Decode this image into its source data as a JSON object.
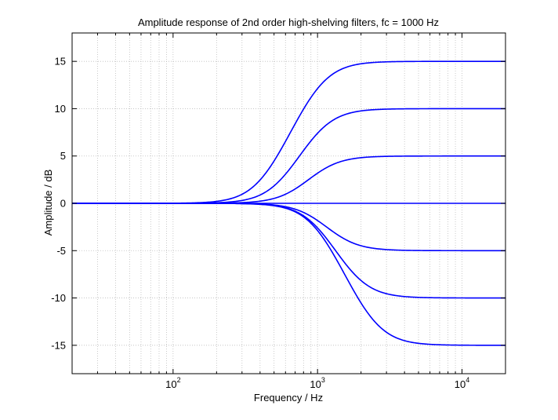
{
  "chart_data": {
    "type": "line",
    "title": "Amplitude response of 2nd order high-shelving filters, fc = 1000 Hz",
    "xlabel": "Frequency / Hz",
    "ylabel": "Amplitude / dB",
    "xscale": "log",
    "xlim": [
      20,
      20000
    ],
    "ylim": [
      -18,
      18
    ],
    "grid": true,
    "line_color": "#0000ff",
    "fc": 1000,
    "yticks": [
      -15,
      -10,
      -5,
      0,
      5,
      10,
      15
    ],
    "ytick_labels": [
      "-15",
      "-10",
      "-5",
      "0",
      "5",
      "10",
      "15"
    ],
    "xticks": [
      {
        "base": "10",
        "exp": "2",
        "value": 100
      },
      {
        "base": "10",
        "exp": "3",
        "value": 1000
      },
      {
        "base": "10",
        "exp": "4",
        "value": 10000
      }
    ],
    "series": [
      {
        "gain_db": 15,
        "x": [
          20,
          100,
          200,
          500,
          1000,
          2000,
          5000,
          20000
        ],
        "y": [
          0.0,
          0.0,
          0.3,
          3.8,
          10.5,
          14.3,
          15.0,
          15.0
        ]
      },
      {
        "gain_db": 10,
        "x": [
          20,
          100,
          200,
          500,
          1000,
          2000,
          5000,
          20000
        ],
        "y": [
          0.0,
          0.0,
          0.2,
          2.4,
          6.8,
          9.5,
          10.0,
          10.0
        ]
      },
      {
        "gain_db": 5,
        "x": [
          20,
          100,
          200,
          500,
          1000,
          2000,
          5000,
          20000
        ],
        "y": [
          0.0,
          0.0,
          0.1,
          1.1,
          3.3,
          4.7,
          5.0,
          5.0
        ]
      },
      {
        "gain_db": 0,
        "x": [
          20,
          100,
          200,
          500,
          1000,
          2000,
          5000,
          20000
        ],
        "y": [
          0,
          0,
          0,
          0,
          0,
          0,
          0,
          0
        ]
      },
      {
        "gain_db": -5,
        "x": [
          20,
          100,
          200,
          500,
          1000,
          2000,
          5000,
          20000
        ],
        "y": [
          0.0,
          0.0,
          -0.1,
          -1.1,
          -3.3,
          -4.7,
          -5.0,
          -5.0
        ]
      },
      {
        "gain_db": -10,
        "x": [
          20,
          100,
          200,
          500,
          1000,
          2000,
          5000,
          20000
        ],
        "y": [
          0.0,
          0.0,
          -0.2,
          -2.4,
          -6.8,
          -9.5,
          -10.0,
          -10.0
        ]
      },
      {
        "gain_db": -15,
        "x": [
          20,
          100,
          200,
          500,
          1000,
          2000,
          5000,
          20000
        ],
        "y": [
          0.0,
          0.0,
          -0.3,
          -3.8,
          -10.5,
          -14.3,
          -15.0,
          -15.0
        ]
      }
    ]
  }
}
